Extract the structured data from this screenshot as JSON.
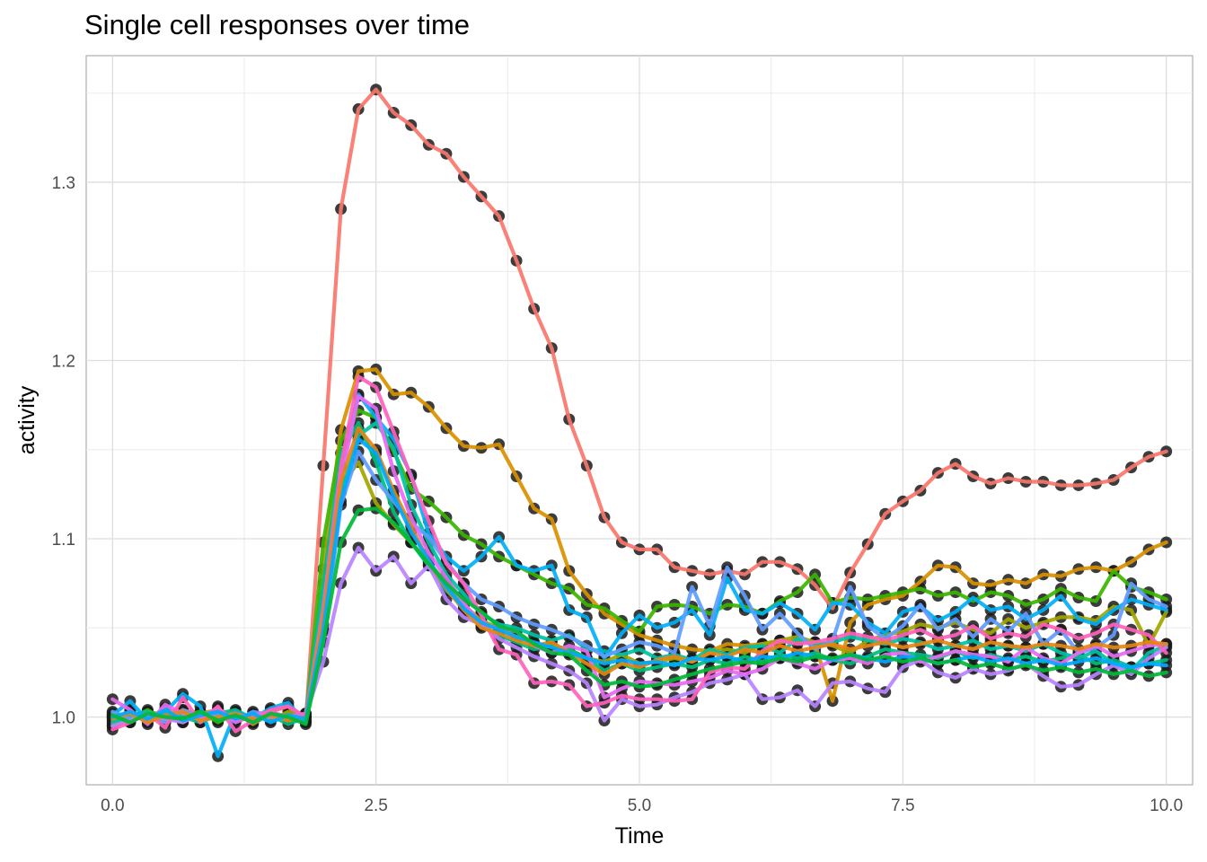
{
  "chart_data": {
    "type": "line",
    "title": "Single cell responses over time",
    "xlabel": "Time",
    "ylabel": "activity",
    "xlim": [
      -0.25,
      10.25
    ],
    "ylim": [
      0.962,
      1.371
    ],
    "x_ticks": [
      0,
      2.5,
      5,
      7.5,
      10
    ],
    "x_tick_labels": [
      "0.0",
      "2.5",
      "5.0",
      "7.5",
      "10.0"
    ],
    "y_ticks": [
      1.0,
      1.1,
      1.2,
      1.3
    ],
    "y_tick_labels": [
      "1.0",
      "1.1",
      "1.2",
      "1.3"
    ],
    "grid": true,
    "legend": "none",
    "point_color": "#1a1a1a",
    "x": [
      0,
      0.167,
      0.333,
      0.5,
      0.667,
      0.833,
      1.0,
      1.167,
      1.333,
      1.5,
      1.667,
      1.833,
      2.0,
      2.167,
      2.333,
      2.5,
      2.667,
      2.833,
      3.0,
      3.167,
      3.333,
      3.5,
      3.667,
      3.833,
      4.0,
      4.167,
      4.333,
      4.5,
      4.667,
      4.833,
      5.0,
      5.167,
      5.333,
      5.5,
      5.667,
      5.833,
      6.0,
      6.167,
      6.333,
      6.5,
      6.667,
      6.833,
      7.0,
      7.167,
      7.333,
      7.5,
      7.667,
      7.833,
      8.0,
      8.167,
      8.333,
      8.5,
      8.667,
      8.833,
      9.0,
      9.167,
      9.333,
      9.5,
      9.667,
      9.833,
      10.0
    ],
    "series": [
      {
        "color": "#F8766D",
        "values": [
          0.997,
          1.003,
          0.998,
          1.005,
          1.002,
          0.999,
          1.004,
          1.001,
          0.998,
          1.003,
          1.006,
          0.997,
          1.141,
          1.285,
          1.341,
          1.352,
          1.339,
          1.332,
          1.321,
          1.316,
          1.303,
          1.292,
          1.281,
          1.256,
          1.229,
          1.207,
          1.167,
          1.141,
          1.112,
          1.098,
          1.094,
          1.094,
          1.084,
          1.082,
          1.08,
          1.082,
          1.08,
          1.087,
          1.087,
          1.083,
          1.074,
          1.061,
          1.081,
          1.097,
          1.114,
          1.121,
          1.127,
          1.137,
          1.142,
          1.135,
          1.131,
          1.134,
          1.132,
          1.132,
          1.13,
          1.13,
          1.131,
          1.133,
          1.14,
          1.146,
          1.149
        ]
      },
      {
        "color": "#D89000",
        "values": [
          0.995,
          1.0,
          1.002,
          0.997,
          1.004,
          1.001,
          0.999,
          1.003,
          0.996,
          1.002,
          1.0,
          0.998,
          1.083,
          1.161,
          1.194,
          1.195,
          1.181,
          1.182,
          1.174,
          1.162,
          1.152,
          1.151,
          1.153,
          1.135,
          1.117,
          1.111,
          1.082,
          1.069,
          1.058,
          1.052,
          1.046,
          1.043,
          1.04,
          1.038,
          1.037,
          1.041,
          1.04,
          1.041,
          1.042,
          1.043,
          1.041,
          1.009,
          1.053,
          1.063,
          1.066,
          1.068,
          1.076,
          1.085,
          1.084,
          1.075,
          1.074,
          1.077,
          1.075,
          1.08,
          1.079,
          1.083,
          1.084,
          1.082,
          1.087,
          1.094,
          1.098
        ]
      },
      {
        "color": "#A3A500",
        "values": [
          1.0,
          0.998,
          1.003,
          1.001,
          0.997,
          1.002,
          1.004,
          0.999,
          1.001,
          0.998,
          1.003,
          1.0,
          1.06,
          1.13,
          1.143,
          1.12,
          1.108,
          1.098,
          1.087,
          1.075,
          1.063,
          1.054,
          1.05,
          1.045,
          1.041,
          1.04,
          1.038,
          1.033,
          1.031,
          1.035,
          1.03,
          1.031,
          1.033,
          1.031,
          1.036,
          1.038,
          1.036,
          1.041,
          1.043,
          1.045,
          1.042,
          1.04,
          1.036,
          1.043,
          1.046,
          1.048,
          1.052,
          1.05,
          1.053,
          1.049,
          1.047,
          1.055,
          1.05,
          1.053,
          1.056,
          1.056,
          1.054,
          1.062,
          1.06,
          1.04,
          1.059
        ]
      },
      {
        "color": "#39B600",
        "values": [
          1.002,
          0.999,
          1.004,
          0.998,
          1.001,
          1.003,
          0.997,
          1.002,
          1.0,
          0.999,
          1.001,
          0.998,
          1.098,
          1.155,
          1.172,
          1.168,
          1.149,
          1.128,
          1.121,
          1.112,
          1.102,
          1.097,
          1.09,
          1.085,
          1.08,
          1.075,
          1.072,
          1.063,
          1.061,
          1.054,
          1.048,
          1.062,
          1.063,
          1.062,
          1.058,
          1.063,
          1.062,
          1.058,
          1.065,
          1.07,
          1.08,
          1.064,
          1.067,
          1.066,
          1.068,
          1.07,
          1.072,
          1.068,
          1.07,
          1.065,
          1.07,
          1.068,
          1.063,
          1.066,
          1.072,
          1.067,
          1.065,
          1.082,
          1.073,
          1.07,
          1.066
        ]
      },
      {
        "color": "#00BF7D",
        "values": [
          0.998,
          1.002,
          0.999,
          1.003,
          1.0,
          0.997,
          1.002,
          1.004,
          0.999,
          1.001,
          0.996,
          1.0,
          1.075,
          1.148,
          1.165,
          1.143,
          1.115,
          1.098,
          1.085,
          1.071,
          1.062,
          1.051,
          1.046,
          1.042,
          1.038,
          1.04,
          1.038,
          1.033,
          1.026,
          1.03,
          1.026,
          1.028,
          1.03,
          1.028,
          1.032,
          1.03,
          1.034,
          1.031,
          1.035,
          1.033,
          1.036,
          1.032,
          1.03,
          1.034,
          1.038,
          1.036,
          1.035,
          1.033,
          1.037,
          1.033,
          1.035,
          1.032,
          1.034,
          1.031,
          1.033,
          1.035,
          1.03,
          1.032,
          1.028,
          1.03,
          1.032
        ]
      },
      {
        "color": "#00C1A3",
        "values": [
          0.996,
          1.001,
          1.003,
          0.999,
          1.002,
          0.998,
          1.0,
          1.003,
          0.997,
          1.001,
          0.999,
          1.002,
          1.068,
          1.126,
          1.158,
          1.165,
          1.151,
          1.119,
          1.098,
          1.08,
          1.069,
          1.058,
          1.052,
          1.05,
          1.046,
          1.043,
          1.046,
          1.038,
          1.037,
          1.035,
          1.038,
          1.033,
          1.035,
          1.032,
          1.038,
          1.035,
          1.039,
          1.04,
          1.036,
          1.044,
          1.04,
          1.042,
          1.045,
          1.043,
          1.041,
          1.044,
          1.042,
          1.038,
          1.04,
          1.043,
          1.038,
          1.04,
          1.037,
          1.041,
          1.036,
          1.033,
          1.037,
          1.03,
          1.026,
          1.036,
          1.04
        ]
      },
      {
        "color": "#00B0F6",
        "values": [
          1.001,
          1.009,
          0.998,
          1.003,
          1.013,
          1.006,
          0.978,
          1.003,
          0.999,
          1.005,
          1.008,
          0.997,
          1.048,
          1.14,
          1.181,
          1.168,
          1.156,
          1.136,
          1.103,
          1.09,
          1.082,
          1.09,
          1.101,
          1.085,
          1.082,
          1.085,
          1.06,
          1.056,
          1.033,
          1.047,
          1.057,
          1.05,
          1.053,
          1.06,
          1.046,
          1.078,
          1.06,
          1.058,
          1.064,
          1.058,
          1.049,
          1.064,
          1.063,
          1.053,
          1.047,
          1.059,
          1.062,
          1.054,
          1.059,
          1.067,
          1.06,
          1.062,
          1.055,
          1.06,
          1.068,
          1.055,
          1.052,
          1.06,
          1.066,
          1.063,
          1.06
        ]
      },
      {
        "color": "#619CFF",
        "values": [
          1.003,
          0.999,
          1.001,
          0.997,
          1.004,
          1.0,
          1.002,
          0.998,
          1.003,
          1.001,
          0.999,
          1.002,
          1.042,
          1.119,
          1.149,
          1.133,
          1.121,
          1.109,
          1.101,
          1.087,
          1.075,
          1.066,
          1.062,
          1.056,
          1.052,
          1.049,
          1.045,
          1.04,
          1.034,
          1.038,
          1.042,
          1.04,
          1.036,
          1.073,
          1.051,
          1.084,
          1.068,
          1.049,
          1.058,
          1.047,
          1.038,
          1.043,
          1.073,
          1.051,
          1.044,
          1.051,
          1.063,
          1.049,
          1.055,
          1.045,
          1.055,
          1.048,
          1.058,
          1.041,
          1.049,
          1.036,
          1.039,
          1.046,
          1.075,
          1.066,
          1.062
        ]
      },
      {
        "color": "#B983FF",
        "values": [
          0.995,
          0.998,
          1.001,
          0.999,
          0.997,
          1.002,
          0.999,
          1.001,
          0.998,
          1.0,
          0.999,
          1.001,
          1.031,
          1.075,
          1.095,
          1.082,
          1.09,
          1.075,
          1.085,
          1.066,
          1.056,
          1.052,
          1.044,
          1.039,
          1.034,
          1.03,
          1.026,
          1.019,
          0.998,
          1.01,
          1.006,
          1.007,
          1.011,
          1.014,
          1.019,
          1.021,
          1.024,
          1.01,
          1.011,
          1.015,
          1.006,
          1.019,
          1.02,
          1.016,
          1.014,
          1.028,
          1.032,
          1.025,
          1.022,
          1.027,
          1.024,
          1.026,
          1.03,
          1.023,
          1.017,
          1.018,
          1.024,
          1.029,
          1.024,
          1.033,
          1.039
        ]
      },
      {
        "color": "#E76BF3",
        "values": [
          1.01,
          1.004,
          0.996,
          1.007,
          1.002,
          1.0,
          1.005,
          0.997,
          1.001,
          1.003,
          1.0,
          1.002,
          1.052,
          1.133,
          1.18,
          1.173,
          1.138,
          1.112,
          1.092,
          1.078,
          1.064,
          1.052,
          1.05,
          1.048,
          1.04,
          1.036,
          1.04,
          1.037,
          1.011,
          1.016,
          1.02,
          1.019,
          1.018,
          1.02,
          1.022,
          1.026,
          1.024,
          1.027,
          1.033,
          1.03,
          1.027,
          1.032,
          1.033,
          1.03,
          1.035,
          1.036,
          1.031,
          1.034,
          1.037,
          1.035,
          1.034,
          1.031,
          1.039,
          1.033,
          1.03,
          1.036,
          1.04,
          1.034,
          1.037,
          1.04,
          1.041
        ]
      },
      {
        "color": "#FF62BC",
        "values": [
          0.993,
          0.997,
          1.002,
          0.994,
          1.011,
          0.997,
          1.006,
          0.992,
          0.998,
          1.004,
          1.006,
          1.0,
          1.061,
          1.141,
          1.191,
          1.185,
          1.16,
          1.135,
          1.11,
          1.086,
          1.075,
          1.057,
          1.038,
          1.035,
          1.019,
          1.02,
          1.018,
          1.006,
          1.008,
          1.012,
          1.01,
          1.01,
          1.009,
          1.01,
          1.025,
          1.028,
          1.027,
          1.037,
          1.043,
          1.041,
          1.042,
          1.044,
          1.047,
          1.045,
          1.043,
          1.046,
          1.049,
          1.044,
          1.046,
          1.051,
          1.044,
          1.047,
          1.045,
          1.052,
          1.049,
          1.044,
          1.047,
          1.052,
          1.049,
          1.046,
          1.036
        ]
      },
      {
        "color": "#E68613",
        "values": [
          0.999,
          1.002,
          0.997,
          1.001,
          1.003,
          0.998,
          1.0,
          1.002,
          0.999,
          1.001,
          0.998,
          1.0,
          1.056,
          1.132,
          1.162,
          1.15,
          1.127,
          1.107,
          1.087,
          1.072,
          1.06,
          1.05,
          1.047,
          1.043,
          1.04,
          1.042,
          1.036,
          1.03,
          1.024,
          1.03,
          1.028,
          1.032,
          1.034,
          1.031,
          1.036,
          1.034,
          1.038,
          1.036,
          1.04,
          1.037,
          1.039,
          1.041,
          1.038,
          1.04,
          1.042,
          1.039,
          1.041,
          1.043,
          1.04,
          1.038,
          1.042,
          1.04,
          1.039,
          1.041,
          1.04,
          1.038,
          1.041,
          1.039,
          1.04,
          1.042,
          1.041
        ]
      },
      {
        "color": "#00A9FF",
        "values": [
          1.0,
          1.003,
          0.999,
          1.004,
          0.998,
          1.001,
          1.003,
          0.999,
          1.002,
          0.997,
          1.001,
          0.999,
          1.049,
          1.121,
          1.156,
          1.148,
          1.124,
          1.104,
          1.088,
          1.073,
          1.061,
          1.053,
          1.049,
          1.045,
          1.042,
          1.039,
          1.036,
          1.033,
          1.03,
          1.032,
          1.03,
          1.031,
          1.029,
          1.033,
          1.032,
          1.034,
          1.031,
          1.034,
          1.033,
          1.036,
          1.034,
          1.032,
          1.035,
          1.033,
          1.031,
          1.034,
          1.033,
          1.03,
          1.032,
          1.034,
          1.031,
          1.033,
          1.03,
          1.032,
          1.029,
          1.031,
          1.033,
          1.03,
          1.028,
          1.03,
          1.029
        ]
      },
      {
        "color": "#00BA38",
        "values": [
          1.001,
          0.997,
          1.002,
          1.0,
          0.999,
          1.003,
          0.998,
          1.001,
          0.997,
          1.002,
          1.0,
          0.996,
          1.042,
          1.098,
          1.116,
          1.117,
          1.109,
          1.098,
          1.086,
          1.075,
          1.066,
          1.059,
          1.051,
          1.048,
          1.041,
          1.036,
          1.035,
          1.026,
          1.018,
          1.02,
          1.017,
          1.018,
          1.021,
          1.024,
          1.027,
          1.029,
          1.031,
          1.03,
          1.033,
          1.031,
          1.034,
          1.033,
          1.035,
          1.032,
          1.034,
          1.031,
          1.033,
          1.03,
          1.032,
          1.028,
          1.03,
          1.027,
          1.029,
          1.026,
          1.028,
          1.025,
          1.027,
          1.024,
          1.026,
          1.023,
          1.025
        ]
      }
    ]
  }
}
